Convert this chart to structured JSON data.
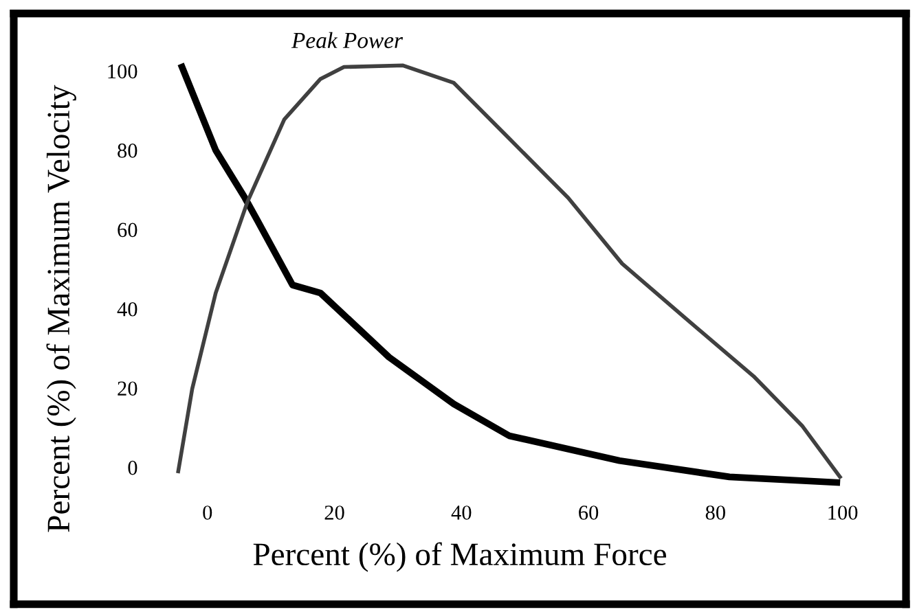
{
  "chart_data": {
    "type": "line",
    "xlabel": "Percent (%) of Maximum Force",
    "ylabel": "Percent (%) of Maximum Velocity",
    "annotations": [
      {
        "text": "Peak Power",
        "x": 22,
        "y": 101
      }
    ],
    "series": [
      {
        "color": "#000000",
        "x": [
          -4,
          1.3,
          5.9,
          7.8,
          13.4,
          17.8,
          28.6,
          38.8,
          47.5,
          64.9,
          82.2,
          99.1
        ],
        "values": [
          101,
          80,
          68,
          62.5,
          46,
          44,
          27.8,
          16,
          8,
          1.7,
          -2.4,
          -3.8
        ]
      },
      {
        "color": "#404040",
        "x": [
          -4.6,
          -2.4,
          1.3,
          6.3,
          12.1,
          17.8,
          21.5,
          30.8,
          38.8,
          47.5,
          56.8,
          65.3,
          75,
          86,
          93.7,
          99.6
        ],
        "values": [
          -1,
          19.8,
          44,
          67,
          87.8,
          98,
          101,
          101.4,
          97,
          83,
          68,
          51.4,
          38,
          23,
          10.4,
          -2.4
        ]
      }
    ],
    "xlim": [
      -30.5,
      110
    ],
    "ylim": [
      -34.5,
      114.5
    ],
    "xticks": [
      0,
      20,
      40,
      60,
      80,
      100
    ],
    "yticks": [
      0,
      20,
      40,
      60,
      80,
      100
    ],
    "grid": false,
    "legend": false,
    "marker": "none",
    "line_style": "solid"
  }
}
